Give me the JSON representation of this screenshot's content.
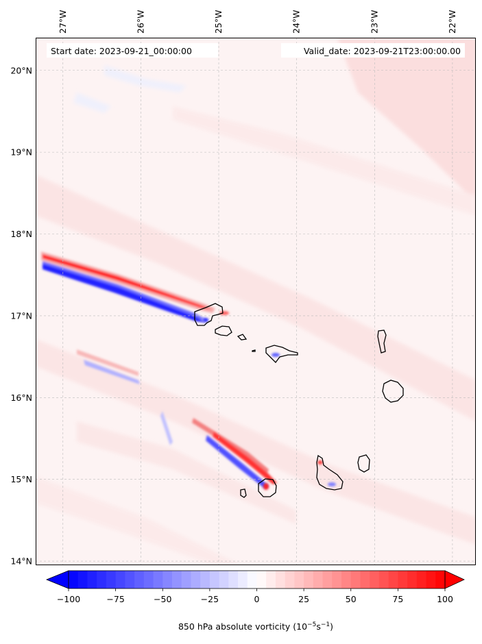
{
  "map": {
    "start_date_label": "Start date: 2023-09-21_00:00:00",
    "valid_date_label": "Valid_date: 2023-09-21T23:00:00.00",
    "lon_ticks": [
      "27°W",
      "26°W",
      "25°W",
      "24°W",
      "23°W",
      "22°W"
    ],
    "lat_ticks": [
      "20°N",
      "19°N",
      "18°N",
      "17°N",
      "16°N",
      "15°N",
      "14°N"
    ],
    "extent": {
      "lon_min": -27.35,
      "lon_max": -21.7,
      "lat_min": 13.95,
      "lat_max": 20.4
    }
  },
  "colorbar": {
    "label_prefix": "850 hPa absolute vorticity (10",
    "label_exp1": "−5",
    "label_mid": "s",
    "label_exp2": "−1",
    "label_suffix": ")",
    "min": -100,
    "max": 100,
    "step": 5,
    "extend": "both",
    "tick_values": [
      -100,
      -75,
      -50,
      -25,
      0,
      25,
      50,
      75,
      100
    ],
    "tick_labels": [
      "−100",
      "−75",
      "−50",
      "−25",
      "0",
      "25",
      "50",
      "75",
      "100"
    ],
    "colormap": "bwr"
  },
  "colors": {
    "negative": "#0000ff",
    "positive": "#ff0000",
    "neutral": "#ffffff",
    "background_tint": "#fdf3f3",
    "coast": "#000000",
    "grid": "#bbbbbb"
  }
}
